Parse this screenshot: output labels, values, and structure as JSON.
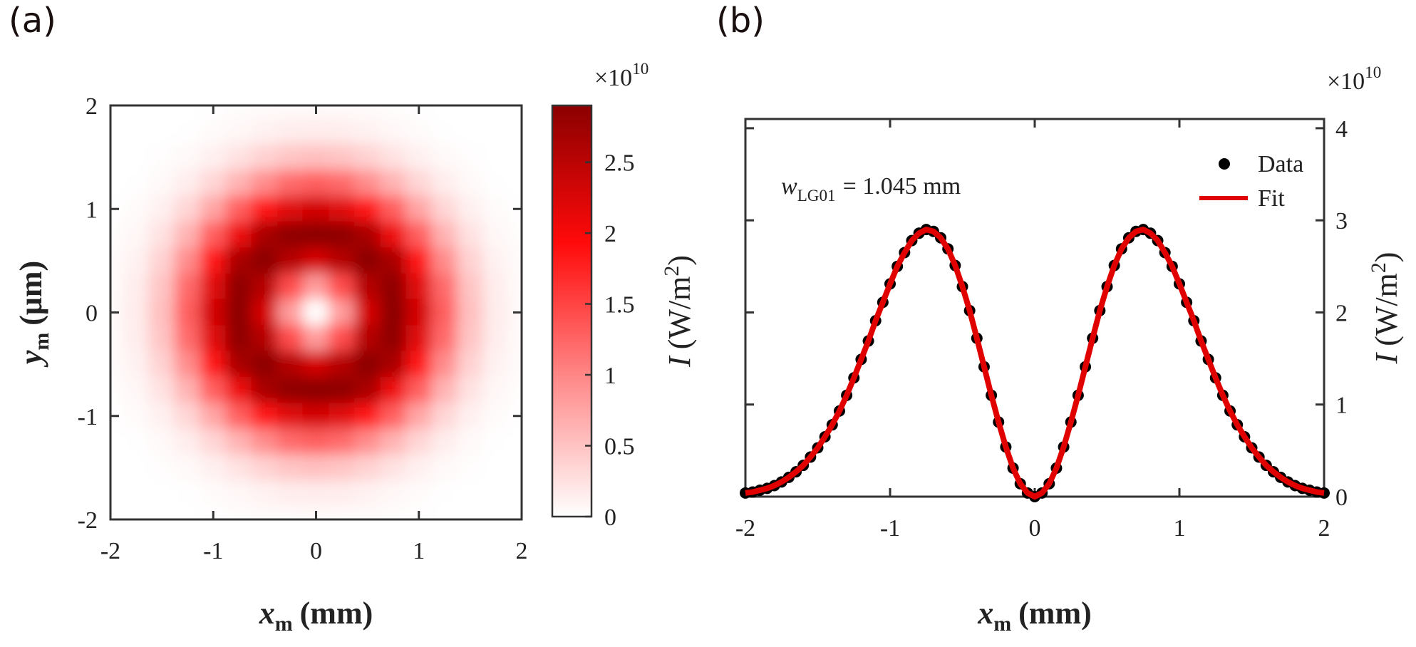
{
  "chart_data": [
    {
      "type": "heatmap",
      "panel_label": "(a)",
      "x": [
        -2,
        -1.75,
        -1.5,
        -1.25,
        -1,
        -0.75,
        -0.5,
        -0.25,
        0,
        0.25,
        0.5,
        0.75,
        1,
        1.25,
        1.5,
        1.75,
        2
      ],
      "y": [
        2,
        1.75,
        1.5,
        1.25,
        1,
        0.75,
        0.5,
        0.25,
        0,
        -0.25,
        -0.5,
        -0.75,
        -1,
        -1.25,
        -1.5,
        -1.75,
        -2
      ],
      "z": [
        [
          0,
          0,
          0,
          0,
          0.01,
          0.02,
          0.03,
          0.03,
          0.04,
          0.03,
          0.03,
          0.02,
          0.01,
          0,
          0,
          0,
          0
        ],
        [
          0,
          0,
          0,
          0.01,
          0.03,
          0.07,
          0.11,
          0.15,
          0.16,
          0.15,
          0.11,
          0.07,
          0.03,
          0.01,
          0,
          0,
          0
        ],
        [
          0,
          0,
          0.02,
          0.05,
          0.12,
          0.24,
          0.37,
          0.48,
          0.53,
          0.48,
          0.37,
          0.24,
          0.12,
          0.05,
          0.02,
          0,
          0
        ],
        [
          0,
          0.01,
          0.05,
          0.15,
          0.34,
          0.63,
          0.95,
          1.2,
          1.29,
          1.2,
          0.95,
          0.63,
          0.34,
          0.15,
          0.05,
          0.01,
          0
        ],
        [
          0.01,
          0.03,
          0.12,
          0.34,
          0.74,
          1.29,
          1.83,
          2.19,
          2.31,
          2.19,
          1.83,
          1.29,
          0.74,
          0.34,
          0.12,
          0.03,
          0.01
        ],
        [
          0.02,
          0.07,
          0.24,
          0.63,
          1.29,
          2.07,
          2.65,
          2.87,
          2.9,
          2.87,
          2.65,
          2.07,
          1.29,
          0.63,
          0.24,
          0.07,
          0.02
        ],
        [
          0.03,
          0.11,
          0.37,
          0.95,
          1.83,
          2.65,
          2.89,
          2.55,
          2.28,
          2.55,
          2.89,
          2.65,
          1.83,
          0.95,
          0.37,
          0.11,
          0.03
        ],
        [
          0.03,
          0.15,
          0.48,
          1.2,
          2.19,
          2.87,
          2.55,
          1.44,
          0.81,
          1.44,
          2.55,
          2.87,
          2.19,
          1.2,
          0.48,
          0.15,
          0.03
        ],
        [
          0.04,
          0.16,
          0.53,
          1.29,
          2.31,
          2.9,
          2.28,
          0.81,
          0,
          0.81,
          2.28,
          2.9,
          2.31,
          1.29,
          0.53,
          0.16,
          0.04
        ],
        [
          0.03,
          0.15,
          0.48,
          1.2,
          2.19,
          2.87,
          2.55,
          1.44,
          0.81,
          1.44,
          2.55,
          2.87,
          2.19,
          1.2,
          0.48,
          0.15,
          0.03
        ],
        [
          0.03,
          0.11,
          0.37,
          0.95,
          1.83,
          2.65,
          2.89,
          2.55,
          2.28,
          2.55,
          2.89,
          2.65,
          1.83,
          0.95,
          0.37,
          0.11,
          0.03
        ],
        [
          0.02,
          0.07,
          0.24,
          0.63,
          1.29,
          2.07,
          2.65,
          2.87,
          2.9,
          2.87,
          2.65,
          2.07,
          1.29,
          0.63,
          0.24,
          0.07,
          0.02
        ],
        [
          0.01,
          0.03,
          0.12,
          0.34,
          0.74,
          1.29,
          1.83,
          2.19,
          2.31,
          2.19,
          1.83,
          1.29,
          0.74,
          0.34,
          0.12,
          0.03,
          0.01
        ],
        [
          0,
          0.01,
          0.05,
          0.15,
          0.34,
          0.63,
          0.95,
          1.2,
          1.29,
          1.2,
          0.95,
          0.63,
          0.34,
          0.15,
          0.05,
          0.01,
          0
        ],
        [
          0,
          0,
          0.02,
          0.05,
          0.12,
          0.24,
          0.37,
          0.48,
          0.53,
          0.48,
          0.37,
          0.24,
          0.12,
          0.05,
          0.02,
          0,
          0
        ],
        [
          0,
          0,
          0,
          0.01,
          0.03,
          0.07,
          0.11,
          0.15,
          0.16,
          0.15,
          0.11,
          0.07,
          0.03,
          0.01,
          0,
          0,
          0
        ],
        [
          0,
          0,
          0,
          0,
          0.01,
          0.02,
          0.03,
          0.03,
          0.04,
          0.03,
          0.03,
          0.02,
          0.01,
          0,
          0,
          0,
          0
        ]
      ],
      "xlim": [
        -2,
        2
      ],
      "ylim": [
        -2,
        2
      ],
      "xticks": [
        -2,
        -1,
        0,
        1,
        2
      ],
      "yticks": [
        -2,
        -1,
        0,
        1,
        2
      ],
      "xlabel": {
        "symbol": "x",
        "subscript": "m",
        "unit": "(mm)"
      },
      "ylabel": {
        "symbol": "y",
        "subscript": "m",
        "unit": "(μm)"
      },
      "colormap": [
        "#ffffff",
        "#ff8a8a",
        "#ff0a0a",
        "#8b0000"
      ],
      "colorbar": {
        "lim": [
          0,
          2.9
        ],
        "ticks": [
          0,
          0.5,
          1,
          1.5,
          2,
          2.5
        ],
        "multiplier": "×10",
        "exponent": "10",
        "label": {
          "symbol": "I",
          "unit": "(W/m",
          "superscript": "2",
          "close": ")"
        }
      }
    },
    {
      "type": "line",
      "panel_label": "(b)",
      "x": [
        -2,
        -1.95,
        -1.9,
        -1.85,
        -1.8,
        -1.75,
        -1.7,
        -1.65,
        -1.6,
        -1.55,
        -1.5,
        -1.45,
        -1.4,
        -1.35,
        -1.3,
        -1.25,
        -1.2,
        -1.15,
        -1.1,
        -1.05,
        -1,
        -0.95,
        -0.9,
        -0.85,
        -0.8,
        -0.75,
        -0.7,
        -0.65,
        -0.6,
        -0.55,
        -0.5,
        -0.45,
        -0.4,
        -0.35,
        -0.3,
        -0.25,
        -0.2,
        -0.15,
        -0.1,
        -0.05,
        0,
        0.05,
        0.1,
        0.15,
        0.2,
        0.25,
        0.3,
        0.35,
        0.4,
        0.45,
        0.5,
        0.55,
        0.6,
        0.65,
        0.7,
        0.75,
        0.8,
        0.85,
        0.9,
        0.95,
        1,
        1.05,
        1.1,
        1.15,
        1.2,
        1.25,
        1.3,
        1.35,
        1.4,
        1.45,
        1.5,
        1.55,
        1.6,
        1.65,
        1.7,
        1.75,
        1.8,
        1.85,
        1.9,
        1.95,
        2
      ],
      "series": [
        {
          "name": "Data",
          "color": "#000000",
          "marker": "dot",
          "values": [
            0.04,
            0.05,
            0.07,
            0.09,
            0.12,
            0.16,
            0.21,
            0.27,
            0.34,
            0.43,
            0.53,
            0.65,
            0.78,
            0.93,
            1.1,
            1.29,
            1.49,
            1.69,
            1.91,
            2.11,
            2.31,
            2.5,
            2.65,
            2.78,
            2.86,
            2.9,
            2.88,
            2.81,
            2.69,
            2.51,
            2.28,
            2.02,
            1.72,
            1.41,
            1.1,
            0.81,
            0.54,
            0.31,
            0.14,
            0.04,
            0,
            0.04,
            0.14,
            0.31,
            0.54,
            0.81,
            1.1,
            1.41,
            1.72,
            2.02,
            2.28,
            2.51,
            2.69,
            2.81,
            2.88,
            2.9,
            2.86,
            2.78,
            2.65,
            2.5,
            2.31,
            2.11,
            1.91,
            1.69,
            1.49,
            1.29,
            1.1,
            0.93,
            0.78,
            0.65,
            0.53,
            0.43,
            0.34,
            0.27,
            0.21,
            0.16,
            0.12,
            0.09,
            0.07,
            0.05,
            0.04
          ]
        },
        {
          "name": "Fit",
          "color": "#e00000",
          "values": [
            0.04,
            0.05,
            0.07,
            0.09,
            0.12,
            0.16,
            0.21,
            0.27,
            0.34,
            0.43,
            0.53,
            0.65,
            0.78,
            0.93,
            1.1,
            1.29,
            1.49,
            1.69,
            1.91,
            2.11,
            2.31,
            2.5,
            2.65,
            2.78,
            2.86,
            2.9,
            2.88,
            2.81,
            2.69,
            2.51,
            2.28,
            2.02,
            1.72,
            1.41,
            1.1,
            0.81,
            0.54,
            0.31,
            0.14,
            0.04,
            0,
            0.04,
            0.14,
            0.31,
            0.54,
            0.81,
            1.1,
            1.41,
            1.72,
            2.02,
            2.28,
            2.51,
            2.69,
            2.81,
            2.88,
            2.9,
            2.86,
            2.78,
            2.65,
            2.5,
            2.31,
            2.11,
            1.91,
            1.69,
            1.49,
            1.29,
            1.1,
            0.93,
            0.78,
            0.65,
            0.53,
            0.43,
            0.34,
            0.27,
            0.21,
            0.16,
            0.12,
            0.09,
            0.07,
            0.05,
            0.04
          ]
        }
      ],
      "xlim": [
        -2,
        2
      ],
      "ylim": [
        0,
        4.1
      ],
      "xticks": [
        -2,
        -1,
        0,
        1,
        2
      ],
      "yticks": [
        0,
        1,
        2,
        3,
        4
      ],
      "y_axis_side": "right",
      "multiplier": "×10",
      "exponent": "10",
      "xlabel": {
        "symbol": "x",
        "subscript": "m",
        "unit": "(mm)"
      },
      "ylabel": {
        "symbol": "I",
        "unit": "(W/m",
        "superscript": "2",
        "close": ")"
      },
      "annotation": {
        "symbol": "w",
        "subscript": "LG01",
        "text": "= 1.045 mm"
      },
      "legend": "upper right"
    }
  ]
}
